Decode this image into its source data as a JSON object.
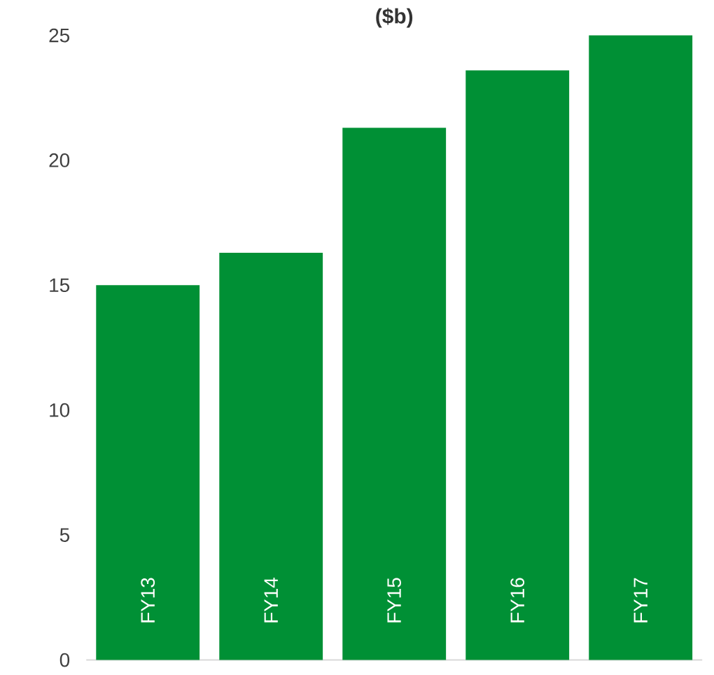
{
  "chart_data": {
    "type": "bar",
    "title": "($b)",
    "categories": [
      "FY13",
      "FY14",
      "FY15",
      "FY16",
      "FY17"
    ],
    "values": [
      15.0,
      16.3,
      21.3,
      23.6,
      25.0
    ],
    "color": "#009035",
    "ylim": [
      0,
      25
    ],
    "yticks": [
      0,
      5,
      10,
      15,
      20,
      25
    ]
  }
}
